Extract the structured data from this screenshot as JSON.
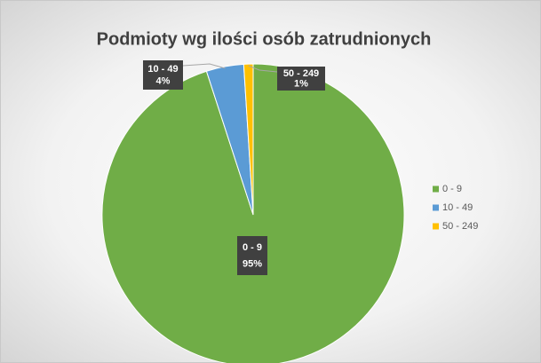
{
  "chart_data": {
    "type": "pie",
    "title": "Podmioty wg ilości osób zatrudnionych",
    "categories": [
      "0 - 9",
      "10 - 49",
      "50 - 249"
    ],
    "values": [
      95,
      4,
      1
    ],
    "value_labels": [
      "95%",
      "4%",
      "1%"
    ],
    "colors": [
      "#70ad47",
      "#5b9bd5",
      "#ffc000"
    ],
    "legend": "right"
  }
}
